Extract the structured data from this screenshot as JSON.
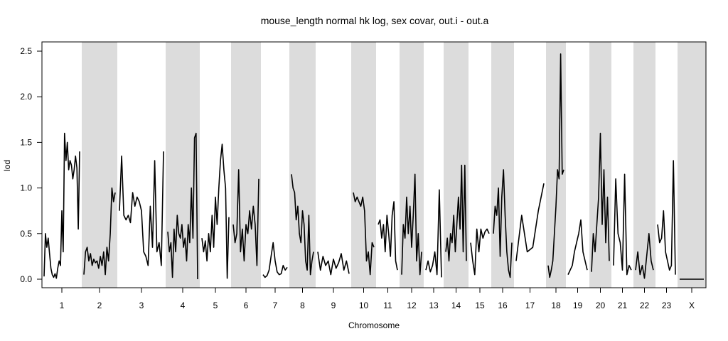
{
  "chart_data": {
    "type": "line",
    "title": "mouse_length normal hk log, sex covar, out.i - out.a",
    "xlabel": "Chromosome",
    "ylabel": "lod",
    "ylim": [
      0,
      2.5
    ],
    "yticks": [
      "0.0",
      "0.5",
      "1.0",
      "1.5",
      "2.0",
      "2.5"
    ],
    "shading": "alternating gray background for even chromosomes and X",
    "shade_color": "#dcdcdc",
    "line_color": "#000000",
    "chromosomes": [
      {
        "name": "1",
        "shaded": false,
        "y": [
          0.03,
          0.5,
          0.35,
          0.45,
          0.28,
          0.12,
          0.05,
          0.02,
          0.06,
          0.01,
          0.12,
          0.2,
          0.15,
          0.75,
          0.3,
          1.6,
          1.3,
          1.5,
          1.2,
          1.3,
          1.25,
          1.1,
          1.2,
          1.35,
          1.22,
          0.55,
          1.4
        ]
      },
      {
        "name": "2",
        "shaded": true,
        "y": [
          0.05,
          0.3,
          0.35,
          0.2,
          0.28,
          0.15,
          0.22,
          0.18,
          0.2,
          0.12,
          0.25,
          0.15,
          0.3,
          0.05,
          0.35,
          0.2,
          0.5,
          1.0,
          0.85,
          0.95
        ]
      },
      {
        "name": "3",
        "shaded": false,
        "y": [
          0.75,
          1.35,
          0.7,
          0.65,
          0.7,
          0.62,
          0.95,
          0.8,
          0.9,
          0.85,
          0.75,
          0.3,
          0.25,
          0.15,
          0.8,
          0.35,
          1.3,
          0.3,
          0.4,
          0.15,
          1.4
        ]
      },
      {
        "name": "4",
        "shaded": true,
        "y": [
          0.52,
          0.3,
          0.4,
          0.02,
          0.55,
          0.3,
          0.7,
          0.5,
          0.45,
          0.6,
          0.35,
          0.45,
          0.2,
          0.6,
          0.4,
          1.0,
          0.45,
          1.55,
          1.6,
          0.0
        ]
      },
      {
        "name": "5",
        "shaded": false,
        "y": [
          0.45,
          0.3,
          0.42,
          0.2,
          0.5,
          0.3,
          0.7,
          0.35,
          0.9,
          0.6,
          1.0,
          1.3,
          1.48,
          1.2,
          1.0,
          0.01,
          0.68
        ]
      },
      {
        "name": "6",
        "shaded": true,
        "y": [
          0.6,
          0.4,
          0.5,
          1.2,
          0.3,
          0.55,
          0.2,
          0.6,
          0.5,
          0.75,
          0.55,
          0.8,
          0.6,
          0.15,
          1.1
        ]
      },
      {
        "name": "7",
        "shaded": false,
        "y": [
          0.05,
          0.02,
          0.04,
          0.1,
          0.25,
          0.4,
          0.2,
          0.08,
          0.05,
          0.06,
          0.15,
          0.1,
          0.13
        ]
      },
      {
        "name": "8",
        "shaded": true,
        "y": [
          1.15,
          1.0,
          0.95,
          0.65,
          0.8,
          0.5,
          0.4,
          0.75,
          0.6,
          0.2,
          0.1,
          0.7,
          0.05,
          0.2,
          0.3
        ]
      },
      {
        "name": "9",
        "shaded": false,
        "y": [
          0.3,
          0.1,
          0.25,
          0.15,
          0.2,
          0.05,
          0.22,
          0.12,
          0.18,
          0.28,
          0.1,
          0.2,
          0.06
        ]
      },
      {
        "name": "10",
        "shaded": true,
        "y": [
          0.95,
          0.85,
          0.9,
          0.85,
          0.8,
          0.9,
          0.75,
          0.2,
          0.3,
          0.05,
          0.4,
          0.35
        ]
      },
      {
        "name": "11",
        "shaded": false,
        "y": [
          0.6,
          0.65,
          0.45,
          0.6,
          0.3,
          0.7,
          0.5,
          0.25,
          0.7,
          0.85,
          0.2,
          0.1
        ]
      },
      {
        "name": "12",
        "shaded": true,
        "y": [
          0.05,
          0.6,
          0.45,
          0.9,
          0.5,
          0.8,
          0.35,
          0.7,
          1.15,
          0.2,
          0.5,
          0.05,
          0.3
        ]
      },
      {
        "name": "13",
        "shaded": false,
        "y": [
          0.1,
          0.2,
          0.08,
          0.15,
          0.3,
          0.05,
          0.98,
          0.02
        ]
      },
      {
        "name": "14",
        "shaded": true,
        "y": [
          0.3,
          0.45,
          0.2,
          0.5,
          0.4,
          0.7,
          0.3,
          0.6,
          0.9,
          0.55,
          1.25,
          0.3,
          1.25,
          0.2
        ]
      },
      {
        "name": "15",
        "shaded": false,
        "y": [
          0.4,
          0.2,
          0.05,
          0.55,
          0.3,
          0.55,
          0.45,
          0.52,
          0.55,
          0.5
        ]
      },
      {
        "name": "16",
        "shaded": true,
        "y": [
          0.5,
          0.8,
          0.7,
          1.0,
          0.25,
          0.9,
          1.2,
          0.7,
          0.3,
          0.1,
          0.02,
          0.4
        ]
      },
      {
        "name": "17",
        "shaded": false,
        "y": [
          0.2,
          0.7,
          0.3,
          0.35,
          0.75,
          1.05
        ]
      },
      {
        "name": "18",
        "shaded": true,
        "y": [
          0.15,
          0.02,
          0.1,
          0.2,
          0.5,
          0.8,
          1.2,
          1.1,
          2.47,
          1.15,
          1.2
        ]
      },
      {
        "name": "19",
        "shaded": false,
        "y": [
          0.05,
          0.1,
          0.15,
          0.3,
          0.4,
          0.5,
          0.65,
          0.3,
          0.2,
          0.1
        ]
      },
      {
        "name": "20",
        "shaded": true,
        "y": [
          0.08,
          0.5,
          0.3,
          0.6,
          0.9,
          1.6,
          0.6,
          1.2,
          0.4,
          0.9,
          0.2
        ]
      },
      {
        "name": "21",
        "shaded": false,
        "y": [
          0.15,
          1.1,
          0.5,
          0.4,
          0.1,
          1.15,
          0.05,
          0.15,
          0.1
        ]
      },
      {
        "name": "22",
        "shaded": true,
        "y": [
          0.1,
          0.3,
          0.05,
          0.15,
          0.01,
          0.25,
          0.5,
          0.2,
          0.1
        ]
      },
      {
        "name": "23",
        "shaded": false,
        "y": [
          0.6,
          0.4,
          0.45,
          0.75,
          0.3,
          0.2,
          0.1,
          0.15,
          1.3,
          0.05
        ]
      },
      {
        "name": "X",
        "shaded": true,
        "y": [
          0.0,
          0.0
        ]
      }
    ]
  }
}
